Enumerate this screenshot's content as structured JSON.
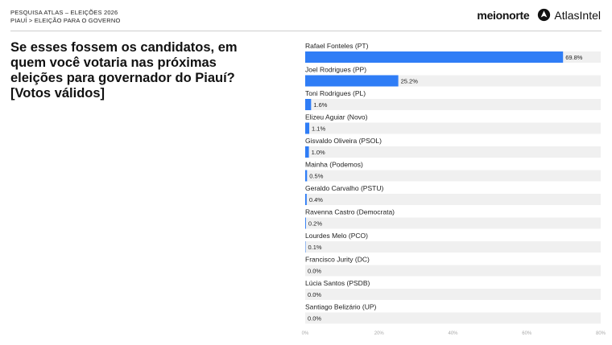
{
  "header": {
    "kicker_line1": "PESQUISA ATLAS – ELEIÇÕES 2026",
    "kicker_line2": "PIAUÍ > ELEIÇÃO PARA O GOVERNO"
  },
  "brands": {
    "meionorte": "meionorte",
    "atlasintel": "AtlasIntel"
  },
  "question": "Se esses fossem os candidatos, em quem você votaria nas próximas eleições para governador do Piauí? [Votos válidos]",
  "colors": {
    "bar": "#2f7df6",
    "track": "#f0f0f0",
    "axis": "#aaaaaa"
  },
  "chart_data": {
    "type": "bar",
    "orientation": "horizontal",
    "categories": [
      "Rafael Fonteles (PT)",
      "Joel Rodrigues (PP)",
      "Toni Rodrigues (PL)",
      "Elizeu Aguiar (Novo)",
      "Gisvaldo Oliveira (PSOL)",
      "Mainha (Podemos)",
      "Geraldo Carvalho (PSTU)",
      "Ravenna Castro (Democrata)",
      "Lourdes Melo (PCO)",
      "Francisco Jurity (DC)",
      "Lúcia Santos (PSDB)",
      "Santiago Belizário (UP)"
    ],
    "values": [
      69.8,
      25.2,
      1.6,
      1.1,
      1.0,
      0.5,
      0.4,
      0.2,
      0.1,
      0.0,
      0.0,
      0.0
    ],
    "value_labels": [
      "69.8%",
      "25.2%",
      "1.6%",
      "1.1%",
      "1.0%",
      "0.5%",
      "0.4%",
      "0.2%",
      "0.1%",
      "0.0%",
      "0.0%",
      "0.0%"
    ],
    "xlim": [
      0,
      80
    ],
    "xticks": [
      0,
      20,
      40,
      60,
      80
    ],
    "xtick_labels": [
      "0%",
      "20%",
      "40%",
      "60%",
      "80%"
    ],
    "grid": false
  }
}
